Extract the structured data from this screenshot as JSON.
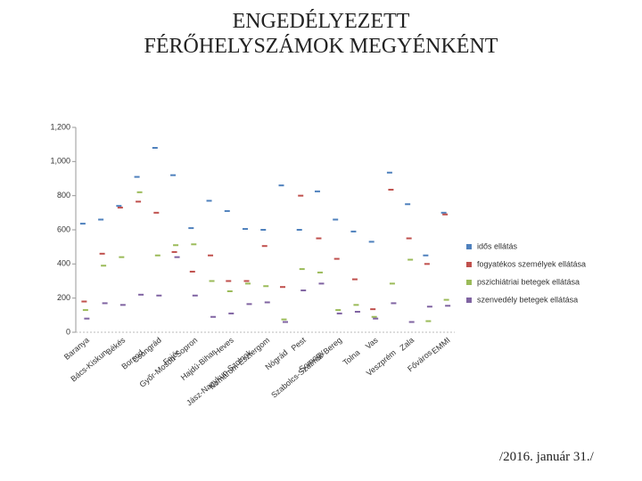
{
  "chart_data": {
    "type": "line-markers",
    "title": "ENGEDÉLYEZETT FÉRŐHELYSZÁMOK MEGYÉNKÉNT",
    "footnote": "/2016. január 31./",
    "categories": [
      "Baranya",
      "Bács-Kiskun",
      "Békés",
      "Borsod",
      "Csongrád",
      "Fejér",
      "Győr-Moson-Sopron",
      "Hajdú-Bihar",
      "Heves",
      "Jász-Nagykun-Szolnok",
      "Komárom-Esztergom",
      "Nógrád",
      "Pest",
      "Somogy",
      "Szabolcs-Szatmár-Bereg",
      "Tolna",
      "Vas",
      "Veszprém",
      "Zala",
      "Főváros",
      "EMMI"
    ],
    "series": [
      {
        "name": "idős ellátás",
        "color": "#4f81bd",
        "values": [
          636,
          660,
          740,
          910,
          1080,
          920,
          610,
          770,
          710,
          605,
          600,
          860,
          600,
          825,
          660,
          590,
          530,
          935,
          750,
          450,
          700
        ]
      },
      {
        "name": "fogyatékos személyek ellátása",
        "color": "#c0504d",
        "values": [
          180,
          460,
          730,
          765,
          700,
          470,
          355,
          450,
          300,
          300,
          505,
          265,
          800,
          550,
          430,
          310,
          135,
          835,
          550,
          400,
          690
        ]
      },
      {
        "name": "pszichiátriai betegek ellátása",
        "color": "#9bbb59",
        "values": [
          130,
          390,
          440,
          820,
          450,
          510,
          515,
          300,
          240,
          285,
          270,
          75,
          370,
          350,
          130,
          160,
          90,
          285,
          425,
          65,
          190
        ]
      },
      {
        "name": "szenvedély betegek ellátása",
        "color": "#8064a2",
        "values": [
          80,
          170,
          160,
          220,
          215,
          440,
          215,
          90,
          110,
          165,
          175,
          60,
          245,
          285,
          110,
          120,
          80,
          170,
          60,
          150,
          155
        ]
      }
    ],
    "ylim": [
      0,
      1200
    ],
    "yticks": [
      0,
      200,
      400,
      600,
      800,
      {
        "value": 1000,
        "label": "1,000"
      },
      {
        "value": 1200,
        "label": "1,200"
      }
    ]
  }
}
